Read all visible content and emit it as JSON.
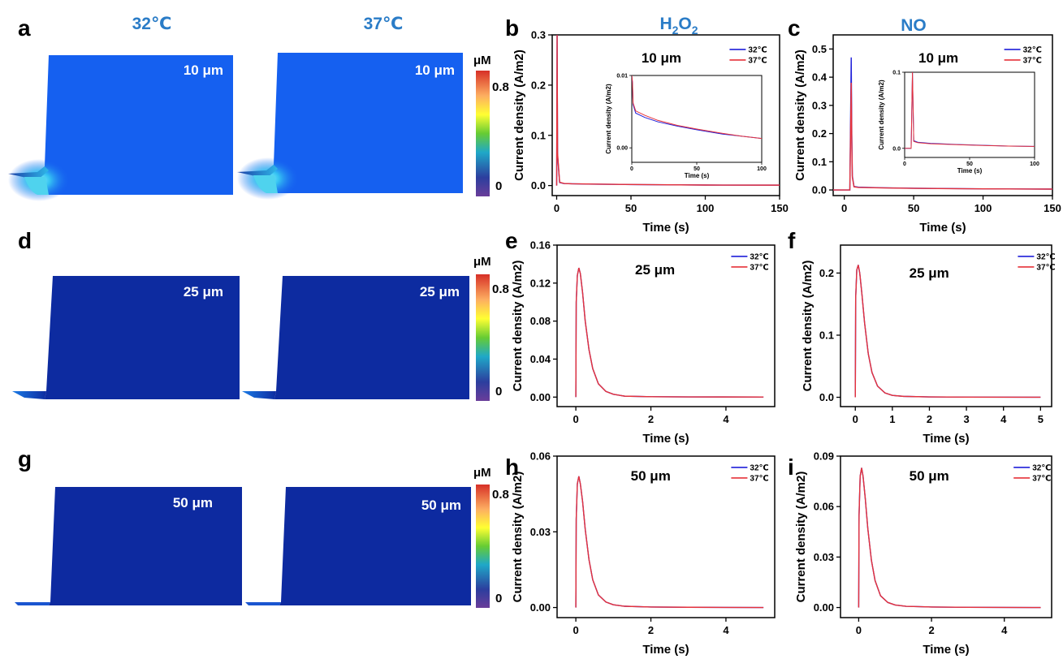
{
  "header": {
    "col1": "32℃",
    "col2": "37℃",
    "h2o2": "H",
    "h2o2_sub1": "2",
    "h2o2_mid": "O",
    "h2o2_sub2": "2",
    "no": "NO"
  },
  "panels": {
    "a": "a",
    "b": "b",
    "c": "c",
    "d": "d",
    "e": "e",
    "f": "f",
    "g": "g",
    "h": "h",
    "i": "i"
  },
  "sim_rows": [
    {
      "label": "10 μm",
      "colorbar_unit": "μM",
      "colorbar_max": "0.8",
      "colorbar_min": "0",
      "field_color": "#1560f0"
    },
    {
      "label": "25 μm",
      "colorbar_unit": "μM",
      "colorbar_max": "0.8",
      "colorbar_min": "0",
      "field_color": "#0d2ba0"
    },
    {
      "label": "50 μm",
      "colorbar_unit": "μM",
      "colorbar_max": "0.8",
      "colorbar_min": "0",
      "field_color": "#0d2aa0"
    }
  ],
  "colors": {
    "series_32": "#1f1fd9",
    "series_37": "#e6323a",
    "header_blue": "#2a7cc7",
    "colorbar": [
      "#d73027",
      "#fdae61",
      "#ffff33",
      "#66cc33",
      "#1fa8c8",
      "#2c3e9e",
      "#6a3d9a"
    ]
  },
  "chart_data": [
    {
      "id": "b",
      "type": "line",
      "annotation": "10 μm",
      "xlabel": "Time (s)",
      "ylabel": "Current density (A/m2)",
      "xlim": [
        -3,
        150
      ],
      "ylim": [
        -0.02,
        0.3
      ],
      "xticks": [
        0,
        50,
        100,
        150
      ],
      "yticks": [
        0.0,
        0.1,
        0.2,
        0.3
      ],
      "xticklabels": [
        "0",
        "50",
        "100",
        "150"
      ],
      "yticklabels": [
        "0.0",
        "0.1",
        "0.2",
        "0.3"
      ],
      "series": [
        {
          "name": "32℃",
          "x": [
            0,
            0.3,
            0.6,
            2,
            5,
            10,
            25,
            50,
            75,
            100,
            150
          ],
          "y": [
            0,
            0.3,
            0.06,
            0.006,
            0.004,
            0.0035,
            0.0028,
            0.002,
            0.0015,
            0.001,
            0.0008
          ]
        },
        {
          "name": "37℃",
          "x": [
            0,
            0.3,
            0.6,
            2,
            5,
            10,
            25,
            50,
            75,
            100,
            150
          ],
          "y": [
            0,
            0.3,
            0.065,
            0.0065,
            0.0042,
            0.0036,
            0.0029,
            0.0021,
            0.0015,
            0.001,
            0.0008
          ]
        }
      ],
      "inset": {
        "xlabel": "Time (s)",
        "ylabel": "Current density (A/m2)",
        "xlim": [
          0,
          100
        ],
        "ylim": [
          -0.002,
          0.01
        ],
        "xticks": [
          0,
          50,
          100
        ],
        "yticks": [
          0.0,
          0.01
        ],
        "xticklabels": [
          "0",
          "50",
          "100"
        ],
        "yticklabels": [
          "0.00",
          "0.01"
        ],
        "series": [
          {
            "name": "32℃",
            "x": [
              0,
              0.5,
              1,
              3,
              10,
              20,
              35,
              50,
              70,
              85,
              100
            ],
            "y": [
              0.01,
              0.009,
              0.006,
              0.0048,
              0.0042,
              0.0036,
              0.003,
              0.0025,
              0.0019,
              0.0016,
              0.0013
            ]
          },
          {
            "name": "37℃",
            "x": [
              0,
              0.5,
              1,
              3,
              10,
              20,
              35,
              50,
              70,
              85,
              100
            ],
            "y": [
              0.01,
              0.0092,
              0.0062,
              0.0051,
              0.0045,
              0.0038,
              0.0031,
              0.0026,
              0.002,
              0.0016,
              0.0013
            ]
          }
        ]
      }
    },
    {
      "id": "c",
      "type": "line",
      "annotation": "10 μm",
      "xlabel": "Time (s)",
      "ylabel": "Current density (A/m2)",
      "xlim": [
        -8,
        150
      ],
      "ylim": [
        -0.02,
        0.55
      ],
      "xticks": [
        0,
        50,
        100,
        150
      ],
      "yticks": [
        0.0,
        0.1,
        0.2,
        0.3,
        0.4,
        0.5
      ],
      "xticklabels": [
        "0",
        "50",
        "100",
        "150"
      ],
      "yticklabels": [
        "0.0",
        "0.1",
        "0.2",
        "0.3",
        "0.4",
        "0.5"
      ],
      "series": [
        {
          "name": "32℃",
          "x": [
            -8,
            4,
            5,
            5.4,
            5.8,
            7,
            10,
            25,
            50,
            75,
            100,
            150
          ],
          "y": [
            0,
            0,
            0.47,
            0.2,
            0.05,
            0.012,
            0.01,
            0.008,
            0.006,
            0.005,
            0.004,
            0.003
          ]
        },
        {
          "name": "37℃",
          "x": [
            -8,
            4,
            5,
            5.4,
            5.8,
            7,
            10,
            25,
            50,
            75,
            100,
            150
          ],
          "y": [
            0,
            0,
            0.38,
            0.17,
            0.045,
            0.011,
            0.009,
            0.0075,
            0.0058,
            0.0048,
            0.004,
            0.003
          ]
        }
      ],
      "inset": {
        "xlabel": "Time (s)",
        "ylabel": "Current density (A/m2)",
        "xlim": [
          0,
          100
        ],
        "ylim": [
          -0.012,
          0.1
        ],
        "xticks": [
          0,
          50,
          100
        ],
        "yticks": [
          0.0,
          0.1
        ],
        "xticklabels": [
          "0",
          "50",
          "100"
        ],
        "yticklabels": [
          "0.0",
          "0.1"
        ],
        "series": [
          {
            "name": "32℃",
            "x": [
              0,
              5,
              6,
              7,
              10,
              20,
              40,
              60,
              80,
              100
            ],
            "y": [
              0,
              0,
              0.1,
              0.01,
              0.008,
              0.0065,
              0.005,
              0.004,
              0.003,
              0.0025
            ]
          },
          {
            "name": "37℃",
            "x": [
              0,
              5,
              6,
              7,
              10,
              20,
              40,
              60,
              80,
              100
            ],
            "y": [
              0,
              0,
              0.1,
              0.009,
              0.0075,
              0.006,
              0.0048,
              0.0038,
              0.003,
              0.0025
            ]
          }
        ]
      }
    },
    {
      "id": "e",
      "type": "line",
      "annotation": "25 μm",
      "xlabel": "Time (s)",
      "ylabel": "Current density (A/m2)",
      "xlim": [
        -0.5,
        5.3
      ],
      "ylim": [
        -0.01,
        0.16
      ],
      "xticks": [
        0,
        2,
        4
      ],
      "yticks": [
        0.0,
        0.04,
        0.08,
        0.12,
        0.16
      ],
      "xticklabels": [
        "0",
        "2",
        "4"
      ],
      "yticklabels": [
        "0.00",
        "0.04",
        "0.08",
        "0.12",
        "0.16"
      ],
      "series": [
        {
          "name": "32℃",
          "x": [
            0,
            0.01,
            0.04,
            0.08,
            0.12,
            0.18,
            0.25,
            0.35,
            0.45,
            0.6,
            0.8,
            1.0,
            1.3,
            2,
            3,
            5
          ],
          "y": [
            0,
            0.1,
            0.128,
            0.136,
            0.13,
            0.11,
            0.08,
            0.05,
            0.03,
            0.014,
            0.006,
            0.003,
            0.001,
            0.0004,
            0.0002,
            0.0001
          ]
        },
        {
          "name": "37℃",
          "x": [
            0,
            0.01,
            0.04,
            0.08,
            0.12,
            0.18,
            0.25,
            0.35,
            0.45,
            0.6,
            0.8,
            1.0,
            1.3,
            2,
            3,
            5
          ],
          "y": [
            0,
            0.1,
            0.128,
            0.136,
            0.13,
            0.11,
            0.08,
            0.05,
            0.03,
            0.014,
            0.006,
            0.003,
            0.001,
            0.0004,
            0.0002,
            0.0001
          ]
        }
      ]
    },
    {
      "id": "f",
      "type": "line",
      "annotation": "25 μm",
      "xlabel": "Time (s)",
      "ylabel": "Current density (A/m2)",
      "xlim": [
        -0.4,
        5.3
      ],
      "ylim": [
        -0.015,
        0.245
      ],
      "xticks": [
        0,
        1,
        2,
        3,
        4,
        5
      ],
      "yticks": [
        0.0,
        0.1,
        0.2
      ],
      "xticklabels": [
        "0",
        "1",
        "2",
        "3",
        "4",
        "5"
      ],
      "yticklabels": [
        "0.0",
        "0.1",
        "0.2"
      ],
      "series": [
        {
          "name": "32℃",
          "x": [
            0,
            0.01,
            0.04,
            0.08,
            0.12,
            0.18,
            0.25,
            0.35,
            0.45,
            0.6,
            0.8,
            1.0,
            1.3,
            2,
            3,
            5
          ],
          "y": [
            0,
            0.16,
            0.205,
            0.213,
            0.2,
            0.165,
            0.12,
            0.07,
            0.04,
            0.018,
            0.007,
            0.003,
            0.0015,
            0.0006,
            0.0003,
            0.0001
          ]
        },
        {
          "name": "37℃",
          "x": [
            0,
            0.01,
            0.04,
            0.08,
            0.12,
            0.18,
            0.25,
            0.35,
            0.45,
            0.6,
            0.8,
            1.0,
            1.3,
            2,
            3,
            5
          ],
          "y": [
            0,
            0.16,
            0.205,
            0.213,
            0.2,
            0.165,
            0.12,
            0.07,
            0.04,
            0.018,
            0.007,
            0.003,
            0.0015,
            0.0006,
            0.0003,
            0.0001
          ]
        }
      ]
    },
    {
      "id": "h",
      "type": "line",
      "annotation": "50 μm",
      "xlabel": "Time (s)",
      "ylabel": "Current density (A/m2)",
      "xlim": [
        -0.5,
        5.3
      ],
      "ylim": [
        -0.004,
        0.06
      ],
      "xticks": [
        0,
        2,
        4
      ],
      "yticks": [
        0.0,
        0.03,
        0.06
      ],
      "xticklabels": [
        "0",
        "2",
        "4"
      ],
      "yticklabels": [
        "0.00",
        "0.03",
        "0.06"
      ],
      "series": [
        {
          "name": "32℃",
          "x": [
            0,
            0.01,
            0.04,
            0.08,
            0.12,
            0.18,
            0.25,
            0.35,
            0.45,
            0.6,
            0.8,
            1.0,
            1.3,
            2,
            3,
            5
          ],
          "y": [
            0,
            0.035,
            0.049,
            0.052,
            0.049,
            0.042,
            0.031,
            0.019,
            0.011,
            0.005,
            0.0022,
            0.0011,
            0.0005,
            0.0002,
            0.0001,
            0.0
          ]
        },
        {
          "name": "37℃",
          "x": [
            0,
            0.01,
            0.04,
            0.08,
            0.12,
            0.18,
            0.25,
            0.35,
            0.45,
            0.6,
            0.8,
            1.0,
            1.3,
            2,
            3,
            5
          ],
          "y": [
            0,
            0.035,
            0.049,
            0.052,
            0.049,
            0.042,
            0.031,
            0.019,
            0.011,
            0.005,
            0.0022,
            0.0011,
            0.0005,
            0.0002,
            0.0001,
            0.0
          ]
        }
      ]
    },
    {
      "id": "i",
      "type": "line",
      "annotation": "50 μm",
      "xlabel": "Time (s)",
      "ylabel": "Current density (A/m2)",
      "xlim": [
        -0.5,
        5.3
      ],
      "ylim": [
        -0.006,
        0.09
      ],
      "xticks": [
        0,
        2,
        4
      ],
      "yticks": [
        0.0,
        0.03,
        0.06,
        0.09
      ],
      "xticklabels": [
        "0",
        "2",
        "4"
      ],
      "yticklabels": [
        "0.00",
        "0.03",
        "0.06",
        "0.09"
      ],
      "series": [
        {
          "name": "32℃",
          "x": [
            0,
            0.01,
            0.04,
            0.08,
            0.12,
            0.18,
            0.25,
            0.35,
            0.45,
            0.6,
            0.8,
            1.0,
            1.3,
            2,
            3,
            5
          ],
          "y": [
            0,
            0.055,
            0.078,
            0.083,
            0.078,
            0.065,
            0.047,
            0.028,
            0.016,
            0.007,
            0.003,
            0.0015,
            0.0007,
            0.0003,
            0.0001,
            0.0
          ]
        },
        {
          "name": "37℃",
          "x": [
            0,
            0.01,
            0.04,
            0.08,
            0.12,
            0.18,
            0.25,
            0.35,
            0.45,
            0.6,
            0.8,
            1.0,
            1.3,
            2,
            3,
            5
          ],
          "y": [
            0,
            0.055,
            0.078,
            0.083,
            0.078,
            0.065,
            0.047,
            0.028,
            0.016,
            0.007,
            0.003,
            0.0015,
            0.0007,
            0.0003,
            0.0001,
            0.0
          ]
        }
      ]
    }
  ]
}
